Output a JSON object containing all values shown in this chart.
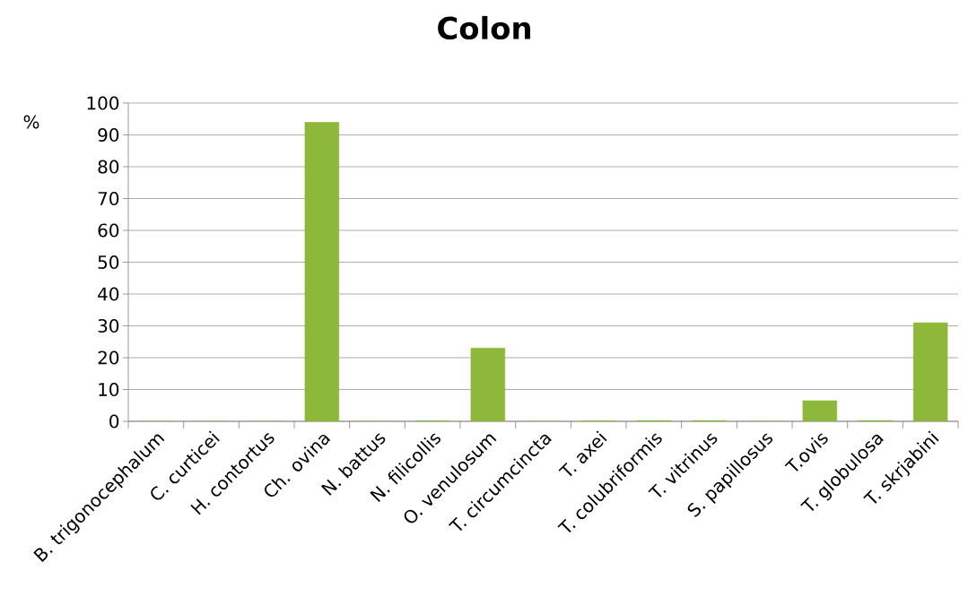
{
  "chart_data": {
    "type": "bar",
    "title": "Colon",
    "ylabel": "%",
    "categories": [
      "B. trigonocephalum",
      "C. curticei",
      "H. contortus",
      "Ch. ovina",
      "N. battus",
      "N. filicollis",
      "O. venulosum",
      "T. circumcincta",
      "T. axei",
      "T. colubriformis",
      "T. vitrinus",
      "S. papillosus",
      "T.ovis",
      "T. globulosa",
      "T. skrjabini"
    ],
    "values": [
      0,
      0,
      0,
      94,
      0,
      0.2,
      23,
      0,
      0.2,
      0.3,
      0.3,
      0,
      6.5,
      0.3,
      31
    ],
    "color": "#8db83a",
    "ylim": [
      0,
      100
    ],
    "yticks": [
      0,
      10,
      20,
      30,
      40,
      50,
      60,
      70,
      80,
      90,
      100
    ],
    "grid": "y"
  }
}
